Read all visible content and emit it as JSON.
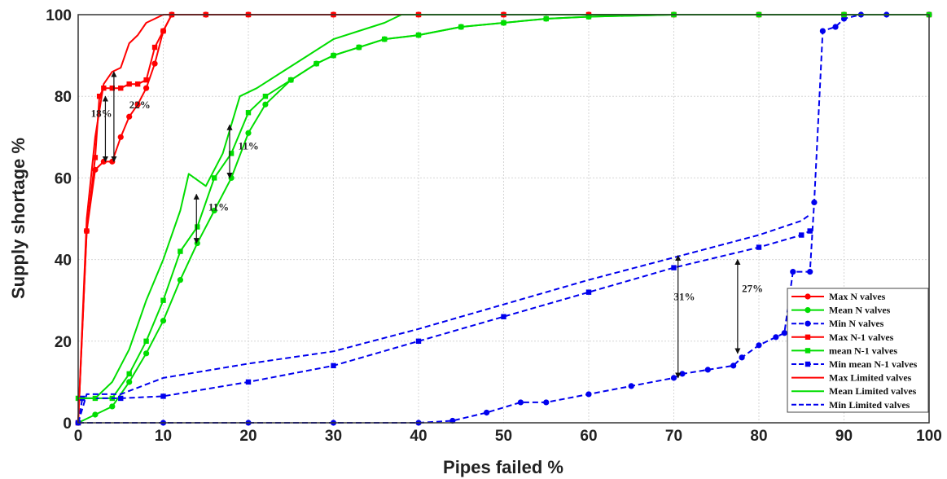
{
  "chart_data": {
    "type": "line",
    "title": "",
    "xlabel": "Pipes failed %",
    "ylabel": "Supply shortage  %",
    "xlim": [
      0,
      100
    ],
    "ylim": [
      0,
      100
    ],
    "xticks": [
      0,
      10,
      20,
      30,
      40,
      50,
      60,
      70,
      80,
      90,
      100
    ],
    "yticks": [
      0,
      20,
      40,
      60,
      80,
      100
    ],
    "grid": true,
    "legend_position": "bottom-right",
    "series": [
      {
        "name": "Max N valves",
        "color": "#ff0000",
        "dash": "solid",
        "marker": "circle",
        "x": [
          0,
          1,
          2,
          3,
          4,
          5,
          6,
          7,
          8,
          9,
          10,
          11,
          15,
          20,
          30,
          40,
          50,
          60,
          70,
          80,
          90,
          100
        ],
        "y": [
          0,
          47,
          62,
          64,
          64,
          70,
          75,
          78,
          82,
          88,
          96,
          100,
          100,
          100,
          100,
          100,
          100,
          100,
          100,
          100,
          100,
          100
        ]
      },
      {
        "name": "Mean N valves",
        "color": "#00dd00",
        "dash": "solid",
        "marker": "circle",
        "x": [
          0,
          2,
          4,
          6,
          8,
          10,
          12,
          14,
          16,
          18,
          20,
          22,
          25,
          28,
          30,
          33,
          36,
          40,
          45,
          50,
          55,
          60,
          70,
          80,
          90,
          100
        ],
        "y": [
          0,
          2,
          4,
          10,
          17,
          25,
          35,
          44,
          52,
          60,
          71,
          78,
          84,
          88,
          90,
          92,
          94,
          95,
          97,
          98,
          99,
          99.5,
          100,
          100,
          100,
          100
        ]
      },
      {
        "name": "Min N valves",
        "color": "#0000ee",
        "dash": "dashed",
        "marker": "circle",
        "x": [
          0,
          10,
          20,
          30,
          40,
          44,
          48,
          52,
          55,
          60,
          65,
          70,
          71,
          74,
          77,
          78,
          80,
          82,
          83,
          84,
          86,
          86.5,
          87.5,
          89,
          90,
          92,
          95,
          100
        ],
        "y": [
          0,
          0,
          0,
          0,
          0,
          0.5,
          2.5,
          5,
          5,
          7,
          9,
          11,
          12,
          13,
          14,
          16,
          19,
          21,
          22,
          37,
          37,
          54,
          96,
          97,
          99,
          100,
          100,
          100
        ]
      },
      {
        "name": "Max N-1 valves",
        "color": "#ff0000",
        "dash": "solid",
        "marker": "square",
        "x": [
          0,
          1,
          2,
          2.5,
          3,
          4,
          5,
          6,
          7,
          8,
          9,
          10,
          11,
          15,
          20,
          30,
          40,
          50,
          60,
          70,
          80,
          90,
          100
        ],
        "y": [
          0,
          47,
          65,
          80,
          82,
          82,
          82,
          83,
          83,
          84,
          92,
          96,
          100,
          100,
          100,
          100,
          100,
          100,
          100,
          100,
          100,
          100,
          100
        ]
      },
      {
        "name": "mean N-1 valves",
        "color": "#00dd00",
        "dash": "solid",
        "marker": "square",
        "x": [
          0,
          2,
          4,
          6,
          8,
          10,
          12,
          14,
          16,
          18,
          20,
          22,
          25,
          28,
          30,
          33,
          36,
          40,
          45,
          50,
          55,
          60,
          70,
          80,
          90,
          100
        ],
        "y": [
          6,
          6,
          6,
          12,
          20,
          30,
          42,
          48,
          60,
          66,
          76,
          80,
          84,
          88,
          90,
          92,
          94,
          95,
          97,
          98,
          99,
          99.5,
          100,
          100,
          100,
          100
        ]
      },
      {
        "name": "Min mean N-1 valves",
        "color": "#0000ee",
        "dash": "dashed",
        "marker": "square",
        "x": [
          0,
          0.5,
          5,
          10,
          20,
          30,
          40,
          50,
          60,
          70,
          80,
          85,
          86
        ],
        "y": [
          0,
          6,
          6,
          6.5,
          10,
          14,
          20,
          26,
          32,
          38,
          43,
          46,
          47
        ]
      },
      {
        "name": "Max Limited valves",
        "color": "#ff0000",
        "dash": "solid",
        "marker": "none",
        "x": [
          0,
          1,
          2,
          3,
          4,
          5,
          6,
          7,
          8,
          9,
          10,
          11,
          15,
          20,
          30,
          40,
          50,
          60,
          70,
          80,
          90,
          100
        ],
        "y": [
          0,
          50,
          70,
          83,
          86,
          87,
          93,
          95,
          98,
          99,
          100,
          100,
          100,
          100,
          100,
          100,
          100,
          100,
          100,
          100,
          100,
          100
        ]
      },
      {
        "name": "Mean Limited valves",
        "color": "#00dd00",
        "dash": "solid",
        "marker": "none",
        "x": [
          0,
          2,
          4,
          6,
          8,
          10,
          12,
          13,
          15,
          17,
          19,
          21,
          24,
          27,
          30,
          33,
          36,
          38,
          45,
          50,
          55,
          60,
          70,
          80,
          90,
          100
        ],
        "y": [
          6,
          6,
          10,
          18,
          30,
          40,
          52,
          61,
          58,
          66,
          80,
          82,
          86,
          90,
          94,
          96,
          98,
          100,
          100,
          100,
          100,
          100,
          100,
          100,
          100,
          100
        ]
      },
      {
        "name": "Min Limited valves",
        "color": "#0000ee",
        "dash": "dashed",
        "marker": "none",
        "x": [
          0,
          1,
          5,
          10,
          20,
          30,
          40,
          50,
          60,
          70,
          80,
          85,
          86
        ],
        "y": [
          0,
          7,
          7,
          11,
          14.5,
          17.5,
          23,
          29,
          35,
          40.5,
          46,
          49.5,
          51
        ]
      }
    ],
    "annotations": [
      {
        "text": "18%",
        "x": 1.5,
        "y": 75,
        "arrow_x": 3.2,
        "arrow_y": [
          64,
          80
        ]
      },
      {
        "text": "22%",
        "x": 6,
        "y": 77,
        "arrow_x": 4.2,
        "arrow_y": [
          64,
          86
        ]
      },
      {
        "text": "11%",
        "x": 15.3,
        "y": 52,
        "arrow_x": 13.9,
        "arrow_y": [
          44,
          56
        ]
      },
      {
        "text": "11%",
        "x": 18.8,
        "y": 67,
        "arrow_x": 17.8,
        "arrow_y": [
          60,
          73
        ]
      },
      {
        "text": "31%",
        "x": 70,
        "y": 30,
        "arrow_x": 70.5,
        "arrow_y": [
          11,
          41
        ]
      },
      {
        "text": "27%",
        "x": 78,
        "y": 32,
        "arrow_x": 77.5,
        "arrow_y": [
          17,
          40
        ]
      }
    ]
  }
}
